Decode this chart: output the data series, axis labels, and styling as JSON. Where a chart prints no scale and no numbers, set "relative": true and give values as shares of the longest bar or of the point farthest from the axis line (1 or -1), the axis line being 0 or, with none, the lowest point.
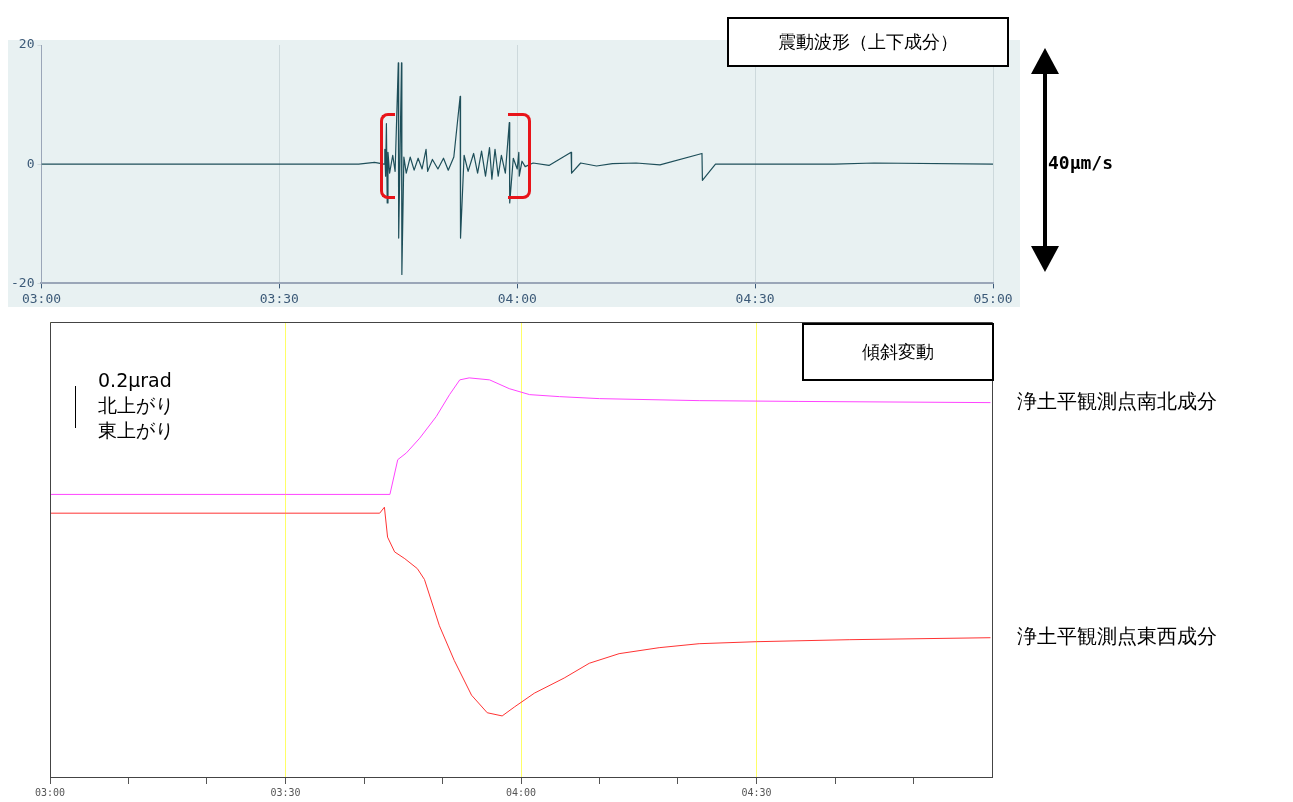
{
  "chart_data": [
    {
      "type": "line",
      "title": "震動波形（上下成分）",
      "color": "#1e4f5a",
      "marker": "none",
      "grid": "x",
      "xlim": [
        3,
        5
      ],
      "xticks": [
        {
          "value": 3,
          "label": "03:00"
        },
        {
          "value": 3.5,
          "label": "03:30"
        },
        {
          "value": 4,
          "label": "04:00"
        },
        {
          "value": 4.5,
          "label": "04:30"
        },
        {
          "value": 5,
          "label": "05:00"
        }
      ],
      "ylim": [
        -20,
        20
      ],
      "yticks": [
        -20,
        0,
        20
      ],
      "annotations": [
        "40μm/s"
      ],
      "x": [
        3,
        3.5,
        3.6667,
        3.7,
        3.72,
        3.7217,
        3.7233,
        3.725,
        3.7267,
        3.7283,
        3.7317,
        3.7383,
        3.7433,
        3.75,
        3.7508,
        3.7567,
        3.7575,
        3.7617,
        3.7667,
        3.775,
        3.7833,
        3.7917,
        3.8,
        3.8083,
        3.8117,
        3.8217,
        3.8333,
        3.845,
        3.855,
        3.8667,
        3.88,
        3.8808,
        3.8883,
        3.8967,
        3.9083,
        3.9167,
        3.925,
        3.9333,
        3.9417,
        3.9467,
        3.9533,
        3.96,
        3.9667,
        3.975,
        3.9833,
        3.9842,
        3.9917,
        4.0,
        4.0033,
        4.0042,
        4.01,
        4.0167,
        4.0333,
        4.0667,
        4.1133,
        4.1142,
        4.1333,
        4.1667,
        4.2,
        4.25,
        4.3,
        4.3883,
        4.3892,
        4.4167,
        4.6667,
        4.75,
        5
      ],
      "values": [
        0,
        0,
        0,
        0.3,
        0,
        2.5,
        -2,
        6.8,
        -6.5,
        2,
        -1.5,
        1.5,
        -1.2,
        17,
        -12.4,
        17,
        -18.5,
        1.2,
        -1.5,
        1.2,
        -1,
        1,
        -0.8,
        2.5,
        -1.2,
        0.8,
        -0.8,
        1,
        -1,
        1.2,
        11.4,
        -12.4,
        1.5,
        -1.2,
        1.8,
        -1.5,
        2.2,
        -2,
        2.8,
        -2.5,
        2.5,
        -2,
        1.5,
        -1.5,
        7,
        -6.5,
        1,
        -0.8,
        2,
        -2,
        0.5,
        -0.4,
        0.2,
        -0.2,
        2,
        -1.5,
        0.2,
        -0.3,
        0.1,
        0.2,
        -0.1,
        1.8,
        -2.7,
        0,
        0,
        0.2,
        0
      ]
    },
    {
      "type": "line",
      "title": "傾斜変動",
      "relative": true,
      "marker": "none",
      "grid": "x",
      "xlim": [
        3,
        5
      ],
      "xticks": [
        {
          "value": 3,
          "label": "03:00"
        },
        {
          "value": 3.1667,
          "label": null
        },
        {
          "value": 3.3333,
          "label": null
        },
        {
          "value": 3.5,
          "label": "03:30"
        },
        {
          "value": 3.6667,
          "label": null
        },
        {
          "value": 3.8333,
          "label": null
        },
        {
          "value": 4,
          "label": "04:00"
        },
        {
          "value": 4.1667,
          "label": null
        },
        {
          "value": 4.3333,
          "label": null
        },
        {
          "value": 4.5,
          "label": "04:30"
        },
        {
          "value": 4.6667,
          "label": null
        },
        {
          "value": 4.8333,
          "label": null
        }
      ],
      "annotations": [
        "0.2μrad",
        "北上がり",
        "東上がり"
      ],
      "series": [
        {
          "name": "浄土平観測点南北成分",
          "color": "#ff44ff",
          "x": [
            3,
            3.5,
            3.7217,
            3.7383,
            3.7567,
            3.785,
            3.82,
            3.8483,
            3.87,
            3.89,
            3.9333,
            3.975,
            4.0183,
            4.0817,
            4.1667,
            4.3783,
            4.59,
            4.9967
          ],
          "values": [
            0.708,
            0.708,
            0.708,
            0.795,
            0.812,
            0.849,
            0.903,
            0.958,
            0.995,
            1,
            0.995,
            0.973,
            0.958,
            0.953,
            0.948,
            0.943,
            0.941,
            0.938
          ]
        },
        {
          "name": "浄土平観測点東西成分",
          "color": "#ff3333",
          "x": [
            3,
            3.5,
            3.7,
            3.71,
            3.7167,
            3.7317,
            3.7533,
            3.78,
            3.795,
            3.8267,
            3.8583,
            3.895,
            3.9283,
            3.96,
            3.9867,
            4.0283,
            4.0917,
            4.145,
            4.2083,
            4.2933,
            4.3783,
            4.5,
            4.6967,
            4.9967
          ],
          "values": [
            0.661,
            0.661,
            0.661,
            0.676,
            0.601,
            0.564,
            0.547,
            0.522,
            0.495,
            0.379,
            0.292,
            0.205,
            0.161,
            0.153,
            0.176,
            0.21,
            0.248,
            0.285,
            0.309,
            0.324,
            0.334,
            0.339,
            0.344,
            0.349
          ]
        }
      ]
    }
  ]
}
